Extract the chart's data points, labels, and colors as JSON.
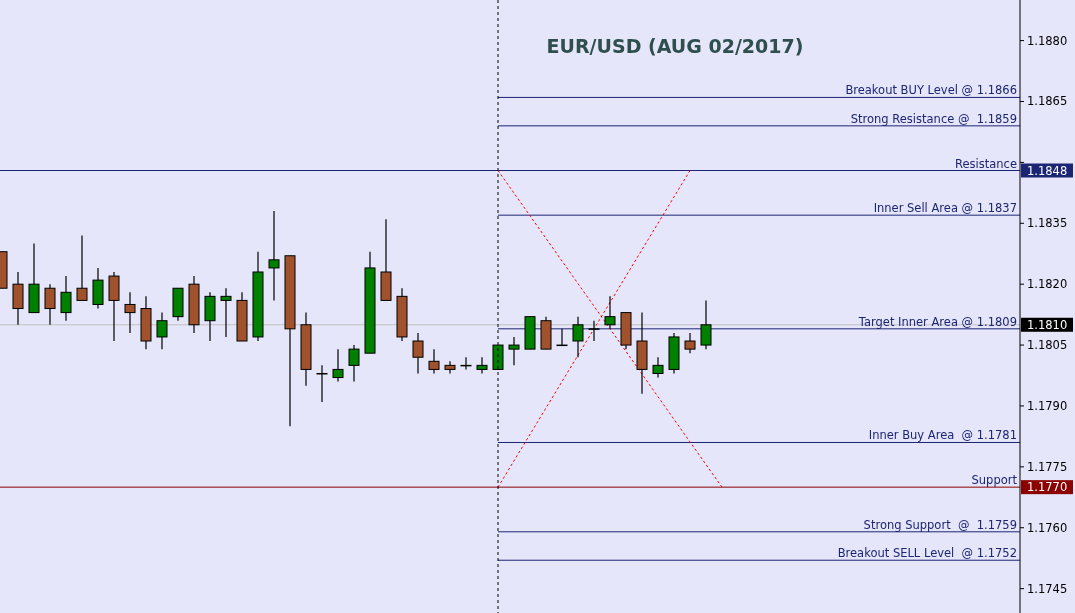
{
  "chart_data": {
    "type": "candlestick",
    "title": "EUR/USD (AUG 02/2017)",
    "categories": [
      null,
      null,
      null,
      null,
      null,
      null,
      null,
      null,
      null,
      null,
      null,
      null,
      null,
      null,
      null,
      null,
      null,
      null,
      null,
      null,
      null,
      null,
      null,
      null,
      null,
      null,
      null,
      null,
      null,
      null,
      null,
      null,
      null,
      null,
      null,
      null,
      null,
      null,
      null,
      null,
      null,
      null,
      null,
      null,
      null,
      null,
      null,
      null,
      null,
      null,
      null,
      null,
      null,
      null,
      null,
      null,
      null,
      null,
      null,
      null,
      null,
      null,
      null,
      null
    ],
    "ohlc": [
      [
        1.1828,
        1.1828,
        1.1819,
        1.1819
      ],
      [
        1.182,
        1.1823,
        1.181,
        1.1814
      ],
      [
        1.1813,
        1.183,
        1.1813,
        1.182
      ],
      [
        1.1819,
        1.182,
        1.181,
        1.1814
      ],
      [
        1.1813,
        1.1822,
        1.1811,
        1.1818
      ],
      [
        1.1819,
        1.1832,
        1.1816,
        1.1816
      ],
      [
        1.1815,
        1.1824,
        1.1814,
        1.1821
      ],
      [
        1.1822,
        1.1823,
        1.1806,
        1.1816
      ],
      [
        1.1815,
        1.1818,
        1.1808,
        1.1813
      ],
      [
        1.1814,
        1.1817,
        1.1804,
        1.1806
      ],
      [
        1.1807,
        1.1813,
        1.1804,
        1.1811
      ],
      [
        1.1812,
        1.1819,
        1.1811,
        1.1819
      ],
      [
        1.182,
        1.1822,
        1.1808,
        1.181
      ],
      [
        1.1811,
        1.1818,
        1.1806,
        1.1817
      ],
      [
        1.1816,
        1.1819,
        1.1807,
        1.1817
      ],
      [
        1.1816,
        1.1818,
        1.1806,
        1.1806
      ],
      [
        1.1807,
        1.1828,
        1.1806,
        1.1823
      ],
      [
        1.1824,
        1.1838,
        1.1816,
        1.1826
      ],
      [
        1.1827,
        1.1827,
        1.1785,
        1.1809
      ],
      [
        1.181,
        1.1813,
        1.1795,
        1.1799
      ],
      [
        1.1798,
        1.18,
        1.1791,
        1.1798
      ],
      [
        1.1797,
        1.1804,
        1.1796,
        1.1799
      ],
      [
        1.18,
        1.1805,
        1.1796,
        1.1804
      ],
      [
        1.1803,
        1.1828,
        1.1803,
        1.1824
      ],
      [
        1.1823,
        1.1836,
        1.1816,
        1.1816
      ],
      [
        1.1817,
        1.1819,
        1.1806,
        1.1807
      ],
      [
        1.1806,
        1.1808,
        1.1798,
        1.1802
      ],
      [
        1.1801,
        1.1804,
        1.1798,
        1.1799
      ],
      [
        1.18,
        1.1801,
        1.1798,
        1.1799
      ],
      [
        1.18,
        1.1802,
        1.1799,
        1.18
      ],
      [
        1.1799,
        1.1802,
        1.1798,
        1.18
      ],
      [
        1.1799,
        1.1805,
        1.1799,
        1.1805
      ],
      [
        1.1804,
        1.1807,
        1.18,
        1.1805
      ],
      [
        1.1804,
        1.1812,
        1.1804,
        1.1812
      ],
      [
        1.1811,
        1.1812,
        1.1804,
        1.1804
      ],
      [
        1.1805,
        1.1809,
        1.1805,
        1.1805
      ],
      [
        1.1806,
        1.1812,
        1.1802,
        1.181
      ],
      [
        1.1809,
        1.1811,
        1.1806,
        1.1809
      ],
      [
        1.181,
        1.1817,
        1.1809,
        1.1812
      ],
      [
        1.1813,
        1.1813,
        1.1804,
        1.1805
      ],
      [
        1.1806,
        1.1813,
        1.1793,
        1.1799
      ],
      [
        1.1798,
        1.1802,
        1.1797,
        1.18
      ],
      [
        1.1799,
        1.1808,
        1.1798,
        1.1807
      ],
      [
        1.1806,
        1.1808,
        1.1803,
        1.1804
      ],
      [
        1.1805,
        1.1816,
        1.1804,
        1.181
      ],
      null,
      null,
      null,
      null,
      null,
      null,
      null,
      null,
      null,
      null,
      null,
      null,
      null,
      null,
      null,
      null,
      null,
      null,
      null
    ],
    "colors": [
      "#a0522d",
      "#a0522d",
      "#008000",
      "#a0522d",
      "#008000",
      "#a0522d",
      "#008000",
      "#a0522d",
      "#a0522d",
      "#a0522d",
      "#008000",
      "#008000",
      "#a0522d",
      "#008000",
      "#008000",
      "#a0522d",
      "#008000",
      "#008000",
      "#a0522d",
      "#a0522d",
      "#008000",
      "#008000",
      "#008000",
      "#008000",
      "#a0522d",
      "#a0522d",
      "#a0522d",
      "#a0522d",
      "#a0522d",
      "#008000",
      "#008000",
      "#008000",
      "#008000",
      "#008000",
      "#a0522d",
      "#008000",
      "#008000",
      "#008000",
      "#008000",
      "#a0522d",
      "#a0522d",
      "#008000",
      "#008000",
      "#a0522d",
      "#008000",
      null,
      null,
      null,
      null,
      null,
      null,
      null,
      null,
      null,
      null,
      null,
      null,
      null,
      null,
      null,
      null,
      null,
      null,
      null
    ],
    "series": [
      {
        "type": "line",
        "color": "#ff0000",
        "line_style": "dotted",
        "values": [
          null,
          null,
          null,
          null,
          null,
          null,
          null,
          null,
          null,
          null,
          null,
          null,
          null,
          null,
          null,
          null,
          null,
          null,
          null,
          null,
          null,
          null,
          null,
          null,
          null,
          null,
          null,
          null,
          null,
          null,
          null,
          1.177,
          null,
          null,
          null,
          null,
          null,
          null,
          null,
          null,
          null,
          null,
          null,
          1.1848,
          null,
          null,
          null,
          null,
          null,
          null,
          null,
          null,
          null,
          null,
          null,
          null,
          null,
          null,
          null,
          null,
          null,
          null,
          null,
          null
        ]
      },
      {
        "type": "line",
        "color": "#ff0000",
        "line_style": "dotted",
        "values": [
          null,
          null,
          null,
          null,
          null,
          null,
          null,
          null,
          null,
          null,
          null,
          null,
          null,
          null,
          null,
          null,
          null,
          null,
          null,
          null,
          null,
          null,
          null,
          null,
          null,
          null,
          null,
          null,
          null,
          null,
          null,
          1.1848,
          null,
          null,
          null,
          null,
          null,
          null,
          null,
          null,
          null,
          null,
          null,
          null,
          null,
          1.177,
          null,
          null,
          null,
          null,
          null,
          null,
          null,
          null,
          null,
          null,
          null,
          null,
          null,
          null,
          null,
          null,
          null,
          null
        ]
      }
    ],
    "ylim": [
      1.1739,
      1.189
    ],
    "yticks": [
      {
        "value": 1.1745,
        "label": "1.1745"
      },
      {
        "value": 1.176,
        "label": "1.1760"
      },
      {
        "value": 1.1775,
        "label": "1.1775"
      },
      {
        "value": 1.179,
        "label": "1.1790"
      },
      {
        "value": 1.1805,
        "label": "1.1805"
      },
      {
        "value": 1.182,
        "label": "1.1820"
      },
      {
        "value": 1.1835,
        "label": "1.1835"
      },
      {
        "value": 1.185,
        "label": null
      },
      {
        "value": 1.1865,
        "label": "1.1865"
      },
      {
        "value": 1.188,
        "label": "1.1880"
      },
      {
        "value": 1.1848,
        "label": "1.1848"
      },
      {
        "value": 1.181,
        "label": "1.1810"
      },
      {
        "value": 1.177,
        "label": "1.1770"
      }
    ],
    "ref_lines": [
      {
        "axis": "y",
        "value": 1.1866,
        "label": "Breakout BUY Level @ 1.1866"
      },
      {
        "axis": "y",
        "value": 1.1859,
        "label": "Strong Resistance @  1.1859"
      },
      {
        "axis": "y",
        "value": 1.1848,
        "label": "Resistance",
        "color": "#1c2573"
      },
      {
        "axis": "y",
        "value": 1.1837,
        "label": "Inner Sell Area @ 1.1837"
      },
      {
        "axis": "y",
        "value": 1.181,
        "color": "#c0c0c0"
      },
      {
        "axis": "y",
        "value": 1.1809,
        "label": "Target Inner Area @ 1.1809"
      },
      {
        "axis": "y",
        "value": 1.1781,
        "label": "Inner Buy Area  @ 1.1781"
      },
      {
        "axis": "y",
        "value": 1.177,
        "label": "Support",
        "color": "#8b0000"
      },
      {
        "axis": "y",
        "value": 1.1759,
        "label": "Strong Support  @  1.1759"
      },
      {
        "axis": "y",
        "value": 1.1752,
        "label": "Breakout SELL Level  @ 1.1752"
      }
    ]
  }
}
